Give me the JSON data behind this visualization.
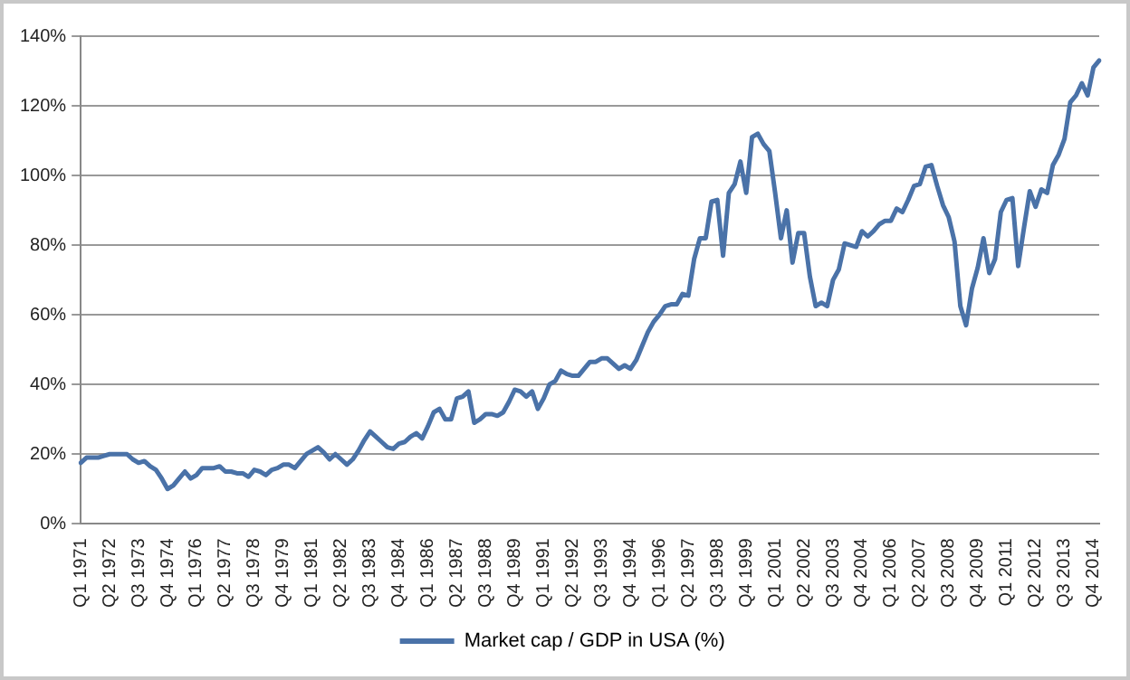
{
  "chart_data": {
    "type": "line",
    "categories": [
      "Q1 1971",
      null,
      null,
      null,
      null,
      "Q2 1972",
      null,
      null,
      null,
      null,
      "Q3 1973",
      null,
      null,
      null,
      null,
      "Q4 1974",
      null,
      null,
      null,
      null,
      "Q1 1976",
      null,
      null,
      null,
      null,
      "Q2 1977",
      null,
      null,
      null,
      null,
      "Q3 1978",
      null,
      null,
      null,
      null,
      "Q4 1979",
      null,
      null,
      null,
      null,
      "Q1 1981",
      null,
      null,
      null,
      null,
      "Q2 1982",
      null,
      null,
      null,
      null,
      "Q3 1983",
      null,
      null,
      null,
      null,
      "Q4 1984",
      null,
      null,
      null,
      null,
      "Q1 1986",
      null,
      null,
      null,
      null,
      "Q2 1987",
      null,
      null,
      null,
      null,
      "Q3 1988",
      null,
      null,
      null,
      null,
      "Q4 1989",
      null,
      null,
      null,
      null,
      "Q1 1991",
      null,
      null,
      null,
      null,
      "Q2 1992",
      null,
      null,
      null,
      null,
      "Q3 1993",
      null,
      null,
      null,
      null,
      "Q4 1994",
      null,
      null,
      null,
      null,
      "Q1 1996",
      null,
      null,
      null,
      null,
      "Q2 1997",
      null,
      null,
      null,
      null,
      "Q3 1998",
      null,
      null,
      null,
      null,
      "Q4 1999",
      null,
      null,
      null,
      null,
      "Q1 2001",
      null,
      null,
      null,
      null,
      "Q2 2002",
      null,
      null,
      null,
      null,
      "Q3 2003",
      null,
      null,
      null,
      null,
      "Q4 2004",
      null,
      null,
      null,
      null,
      "Q1 2006",
      null,
      null,
      null,
      null,
      "Q2 2007",
      null,
      null,
      null,
      null,
      "Q3 2008",
      null,
      null,
      null,
      null,
      "Q4 2009",
      null,
      null,
      null,
      null,
      "Q1 2011",
      null,
      null,
      null,
      null,
      "Q2 2012",
      null,
      null,
      null,
      null,
      "Q3 2013",
      null,
      null,
      null,
      null,
      "Q4 2014",
      null
    ],
    "series": [
      {
        "name": "Market cap / GDP in USA (%)",
        "color": "#4a72a8",
        "values": [
          17.5,
          19,
          19,
          19,
          19.5,
          20,
          20,
          20,
          20,
          18.5,
          17.5,
          18,
          16.5,
          15.5,
          13,
          10,
          11,
          13,
          15,
          13,
          14,
          16,
          16,
          16,
          16.5,
          15,
          15,
          14.5,
          14.5,
          13.5,
          15.5,
          15,
          14,
          15.5,
          16,
          17,
          17,
          16,
          18,
          20,
          21,
          22,
          20.5,
          18.5,
          20,
          18.5,
          17,
          18.5,
          21,
          24,
          26.5,
          25,
          23.5,
          22,
          21.5,
          23,
          23.5,
          25,
          26,
          24.5,
          28,
          32,
          33,
          30,
          30,
          36,
          36.5,
          38,
          29,
          30,
          31.5,
          31.5,
          31,
          32,
          35,
          38.5,
          38,
          36.5,
          38,
          33,
          36,
          40,
          41,
          44,
          43,
          42.5,
          42.5,
          44.5,
          46.5,
          46.5,
          47.5,
          47.5,
          46,
          44.5,
          45.5,
          44.5,
          47,
          51,
          55,
          58,
          60,
          62.5,
          63,
          63,
          66,
          65.5,
          76,
          82,
          82,
          92.5,
          93,
          77,
          95,
          97.5,
          104,
          95,
          111,
          112,
          109,
          107,
          95,
          82,
          90,
          75,
          83.5,
          83.5,
          71,
          62.5,
          63.5,
          62.5,
          70,
          73,
          80.5,
          80,
          79.5,
          84,
          82.5,
          84,
          86,
          87,
          87,
          90.5,
          89.5,
          93,
          97,
          97.5,
          102.5,
          103,
          97,
          91.5,
          88,
          81,
          62.5,
          57,
          67.5,
          73.5,
          82,
          72,
          76,
          89.5,
          93,
          93.5,
          74,
          85,
          95.5,
          91,
          96,
          95,
          103,
          106,
          110.5,
          121,
          123,
          126.5,
          123,
          131,
          133
        ]
      }
    ],
    "ylim": [
      0,
      140
    ],
    "yticks": [
      {
        "value": 0,
        "label": "0%"
      },
      {
        "value": 20,
        "label": "20%"
      },
      {
        "value": 40,
        "label": "40%"
      },
      {
        "value": 60,
        "label": "60%"
      },
      {
        "value": 80,
        "label": "80%"
      },
      {
        "value": 100,
        "label": "100%"
      },
      {
        "value": 120,
        "label": "120%"
      },
      {
        "value": 140,
        "label": "140%"
      }
    ],
    "grid": "y",
    "legend": "bottom",
    "marker": "none",
    "line_style": "solid"
  }
}
